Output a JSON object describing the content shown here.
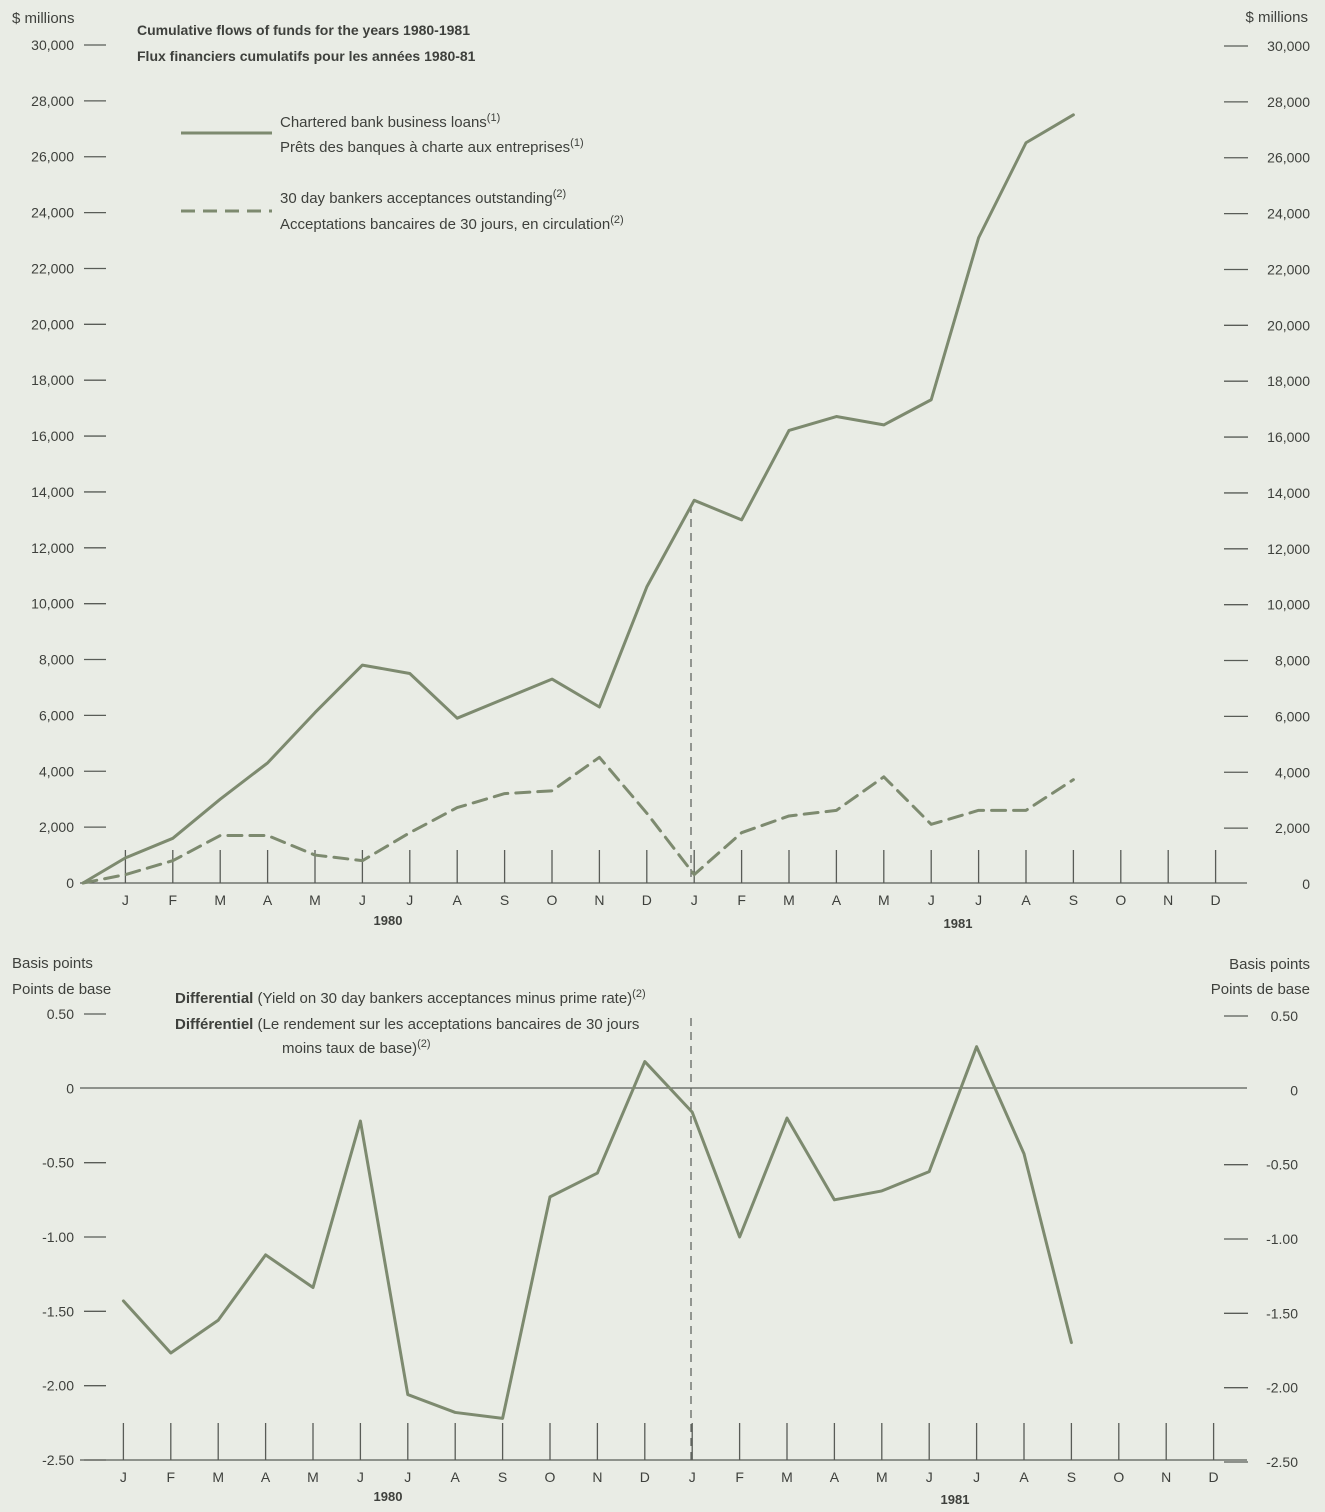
{
  "colors": {
    "background": "#e9ece5",
    "series": "#7d8a6f",
    "text": "#3e403c",
    "axis": "#595c57"
  },
  "chart_data": [
    {
      "type": "line",
      "title": "Cumulative flows of funds for the years 1980-1981",
      "subtitle": "Flux financiers cumulatifs pour les années 1980-81",
      "ylabel": "$ millions",
      "ylabel_right": "$ millions",
      "ylim": [
        0,
        30000
      ],
      "yticks_left": [
        "30,000",
        "28,000",
        "26,000",
        "24,000",
        "22,000",
        "20,000",
        "18,000",
        "16,000",
        "14,000",
        "12,000",
        "10,000",
        "8,000",
        "6,000",
        "4,000",
        "2,000",
        "0"
      ],
      "yticks_right": [
        "30,000",
        "28,000",
        "26,000",
        "24,000",
        "22,000",
        "20,000",
        "18,000",
        "16,000",
        "14,000",
        "12,000",
        "10,000",
        "8,000",
        "6,000",
        "4,000",
        "2,000",
        "0"
      ],
      "month_labels": [
        "J",
        "F",
        "M",
        "A",
        "M",
        "J",
        "J",
        "A",
        "S",
        "O",
        "N",
        "D",
        "J",
        "F",
        "M",
        "A",
        "M",
        "J",
        "J",
        "A",
        "S",
        "O",
        "N",
        "D"
      ],
      "year_labels": [
        "1980",
        "1981"
      ],
      "legend_placement": "top-left",
      "series": [
        {
          "name": "Chartered bank business loans",
          "name_fr": "Prêts des banques à charte aux entreprises",
          "note": "(1)",
          "style": "solid",
          "start": 0,
          "values": [
            900,
            1600,
            3000,
            4300,
            6100,
            7800,
            7500,
            5900,
            6600,
            7300,
            6300,
            10600,
            13700,
            13000,
            16200,
            16700,
            16400,
            17300,
            23100,
            26500,
            27500
          ]
        },
        {
          "name": "30 day bankers acceptances outstanding",
          "name_fr": "Acceptations bancaires de 30 jours, en circulation",
          "note": "(2)",
          "style": "dashed",
          "start": 0,
          "values": [
            300,
            800,
            1700,
            1700,
            1000,
            800,
            1800,
            2700,
            3200,
            3300,
            4500,
            2500,
            300,
            1800,
            2400,
            2600,
            3800,
            2100,
            2600,
            2600,
            3700
          ]
        }
      ]
    },
    {
      "type": "line",
      "title": "Differential",
      "title_detail": "(Yield on 30 day bankers acceptances minus prime rate)",
      "title_note": "(2)",
      "title_fr": "Différentiel",
      "title_fr_detail_1": "(Le rendement sur les acceptations bancaires de 30 jours",
      "title_fr_detail_2": "moins taux de base)",
      "title_fr_note": "(2)",
      "ylabel": "Basis points",
      "ylabel_fr": "Points de base",
      "ylabel_right": "Basis points",
      "ylabel_right_fr": "Points de base",
      "ylim": [
        -2.5,
        0.5
      ],
      "yticks_left": [
        "0.50",
        "0",
        "-0.50",
        "-1.00",
        "-1.50",
        "-2.00",
        "-2.50"
      ],
      "yticks_right": [
        "0.50",
        "0",
        "-0.50",
        "-1.00",
        "-1.50",
        "-2.00",
        "-2.50"
      ],
      "month_labels": [
        "J",
        "F",
        "M",
        "A",
        "M",
        "J",
        "J",
        "A",
        "S",
        "O",
        "N",
        "D",
        "J",
        "F",
        "M",
        "A",
        "M",
        "J",
        "J",
        "A",
        "S",
        "O",
        "N",
        "D"
      ],
      "year_labels": [
        "1980",
        "1981"
      ],
      "series": [
        {
          "style": "solid",
          "values": [
            -1.43,
            -1.78,
            -1.56,
            -1.12,
            -1.34,
            -0.22,
            -2.06,
            -2.18,
            -2.22,
            -0.73,
            -0.57,
            0.18,
            -0.16,
            -1.0,
            -0.2,
            -0.75,
            -0.69,
            -0.56,
            0.28,
            -0.44,
            -1.71
          ]
        }
      ]
    }
  ]
}
